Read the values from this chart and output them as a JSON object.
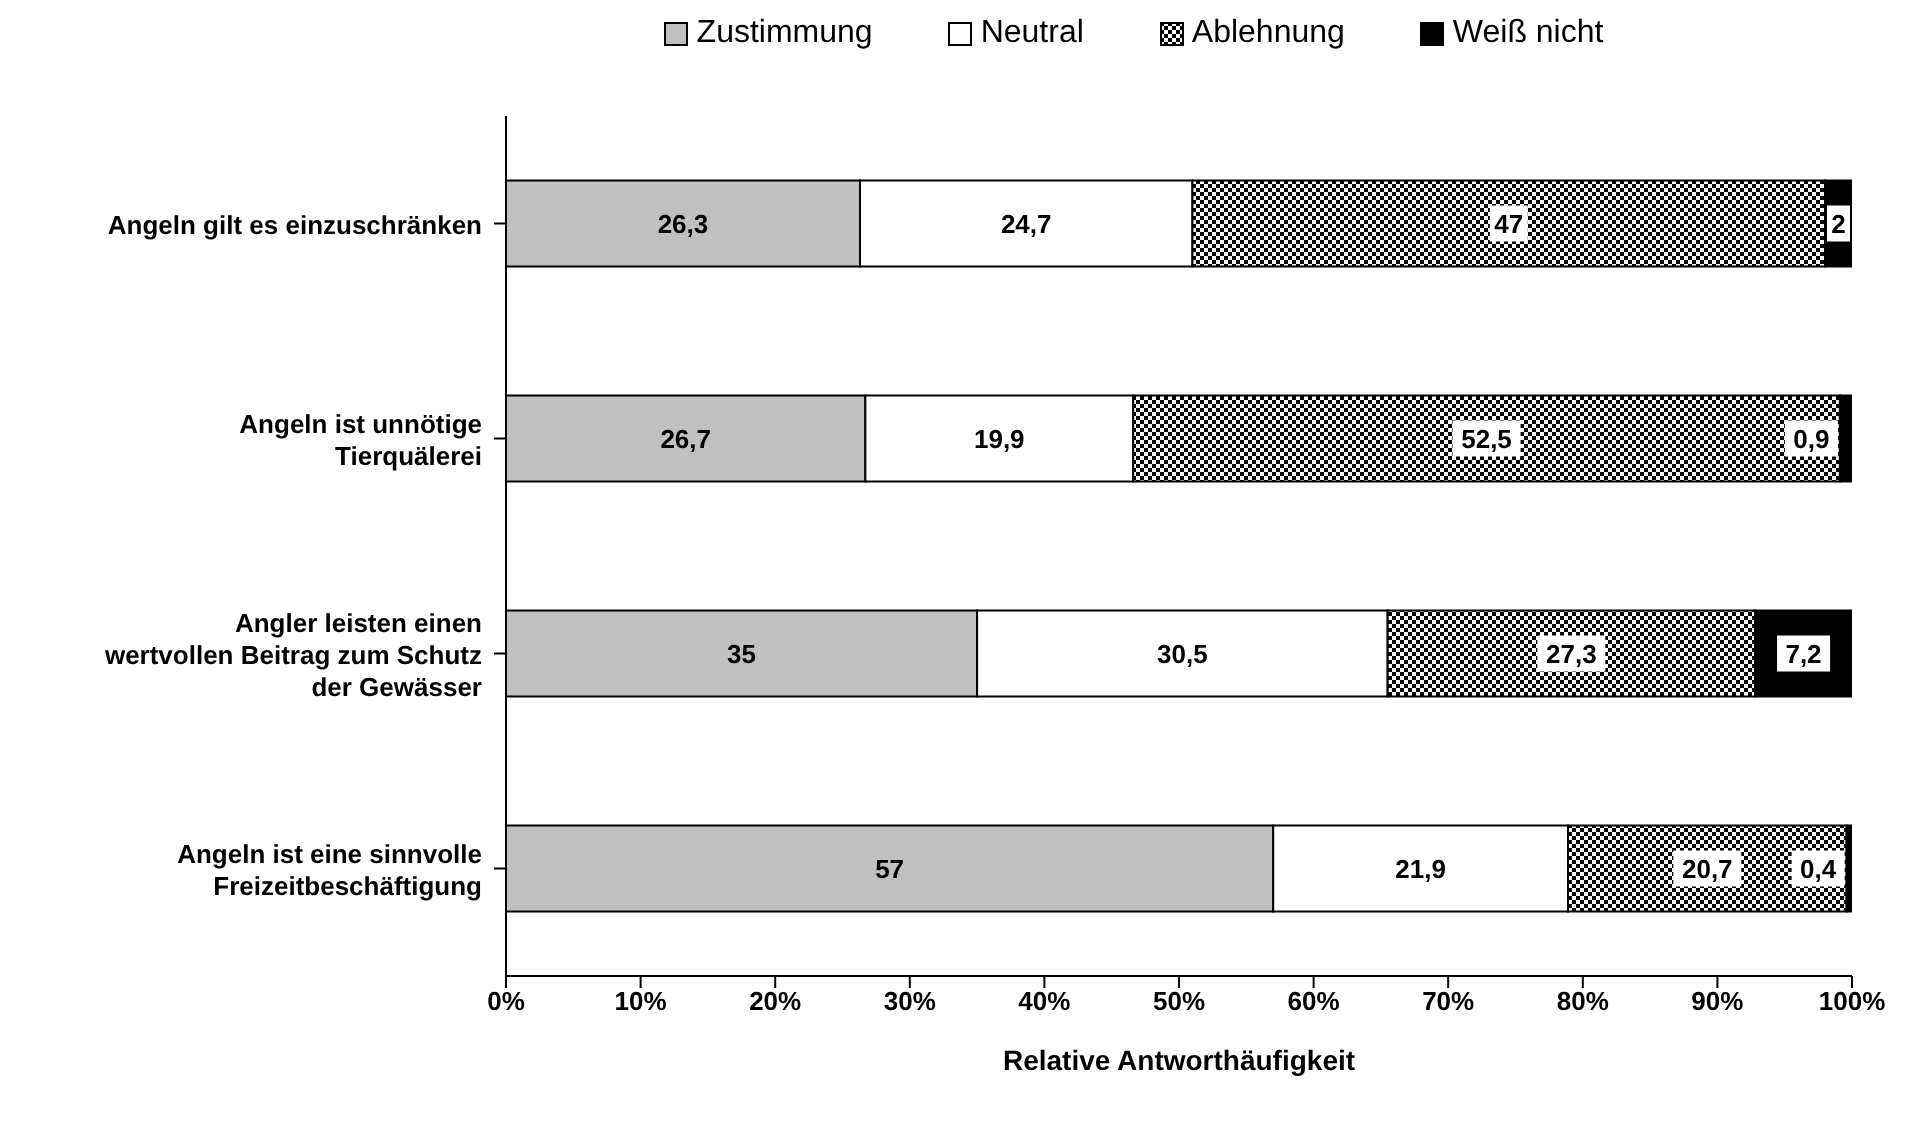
{
  "chart_data": {
    "type": "bar",
    "orientation": "horizontal",
    "stacked": true,
    "xlabel": "Relative Antworthäufigkeit",
    "categories": [
      "Angeln gilt es einzuschränken",
      "Angeln ist unnötige Tierquälerei",
      "Angler leisten einen wertvollen Beitrag zum Schutz der Gewässer",
      "Angeln ist eine sinnvolle Freizeitbeschäftigung"
    ],
    "series": [
      {
        "name": "Zustimmung",
        "color": "#c0c0c0",
        "values": [
          26.3,
          26.7,
          35,
          57
        ],
        "value_labels": [
          "26,3",
          "26,7",
          "35",
          "57"
        ]
      },
      {
        "name": "Neutral",
        "color": "#ffffff",
        "values": [
          24.7,
          19.9,
          30.5,
          21.9
        ],
        "value_labels": [
          "24,7",
          "19,9",
          "30,5",
          "21,9"
        ]
      },
      {
        "name": "Ablehnung",
        "color": "#000000",
        "values": [
          47,
          52.5,
          27.3,
          20.7
        ],
        "value_labels": [
          "47",
          "52,5",
          "27,3",
          "20,7"
        ]
      },
      {
        "name": "Weiß nicht",
        "color": "#000000",
        "values": [
          2,
          0.9,
          7.2,
          0.4
        ],
        "value_labels": [
          "2",
          "0,9",
          "7,2",
          "0,4"
        ]
      }
    ],
    "xlim": [
      0,
      100
    ],
    "xticks": [
      {
        "value": 0,
        "label": "0%"
      },
      {
        "value": 10,
        "label": "10%"
      },
      {
        "value": 20,
        "label": "20%"
      },
      {
        "value": 30,
        "label": "30%"
      },
      {
        "value": 40,
        "label": "40%"
      },
      {
        "value": 50,
        "label": "50%"
      },
      {
        "value": 60,
        "label": "60%"
      },
      {
        "value": 70,
        "label": "70%"
      },
      {
        "value": 80,
        "label": "80%"
      },
      {
        "value": 90,
        "label": "90%"
      },
      {
        "value": 100,
        "label": "100%"
      }
    ],
    "grid": false,
    "legend": "top"
  }
}
